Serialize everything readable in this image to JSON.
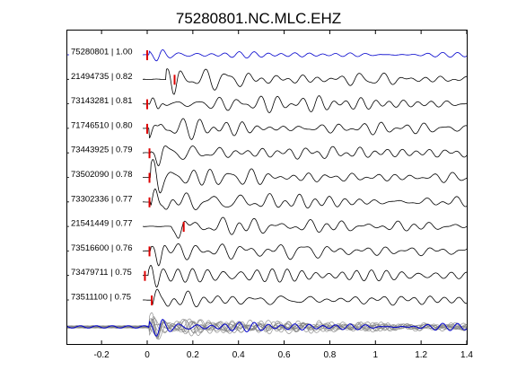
{
  "chart_data": {
    "type": "line",
    "title": "75280801.NC.MLC.EHZ",
    "xlabel": "",
    "ylabel": "",
    "xlim": [
      -0.35,
      1.4
    ],
    "x_ticks": [
      -0.2,
      0,
      0.2,
      0.4,
      0.6,
      0.8,
      1,
      1.2,
      1.4
    ],
    "x_tick_labels": [
      "-0.2",
      "0",
      "0.2",
      "0.4",
      "0.6",
      "0.8",
      "1",
      "1.2",
      "1.4"
    ],
    "grid": false,
    "legend": "none",
    "colors": {
      "reference": "#0000cc",
      "trace": "#000000",
      "pick": "#dd0000",
      "stack": "#808080",
      "frame": "#000000"
    },
    "series": [
      {
        "name": "75280801 | 1.00",
        "pick_time": 0.0,
        "reference": true
      },
      {
        "name": "21494735 | 0.82",
        "pick_time": 0.12
      },
      {
        "name": "73143281 | 0.81",
        "pick_time": 0.0
      },
      {
        "name": "71746510 | 0.80",
        "pick_time": 0.0
      },
      {
        "name": "73443925 | 0.79",
        "pick_time": 0.01
      },
      {
        "name": "73502090 | 0.78",
        "pick_time": 0.01
      },
      {
        "name": "73302336 | 0.77",
        "pick_time": 0.01
      },
      {
        "name": "21541449 | 0.77",
        "pick_time": 0.16
      },
      {
        "name": "73516600 | 0.76",
        "pick_time": 0.01
      },
      {
        "name": "73479711 | 0.75",
        "pick_time": -0.01
      },
      {
        "name": "73511100 | 0.75",
        "pick_time": 0.02
      }
    ],
    "stack": {
      "reference_overlay": true
    }
  }
}
